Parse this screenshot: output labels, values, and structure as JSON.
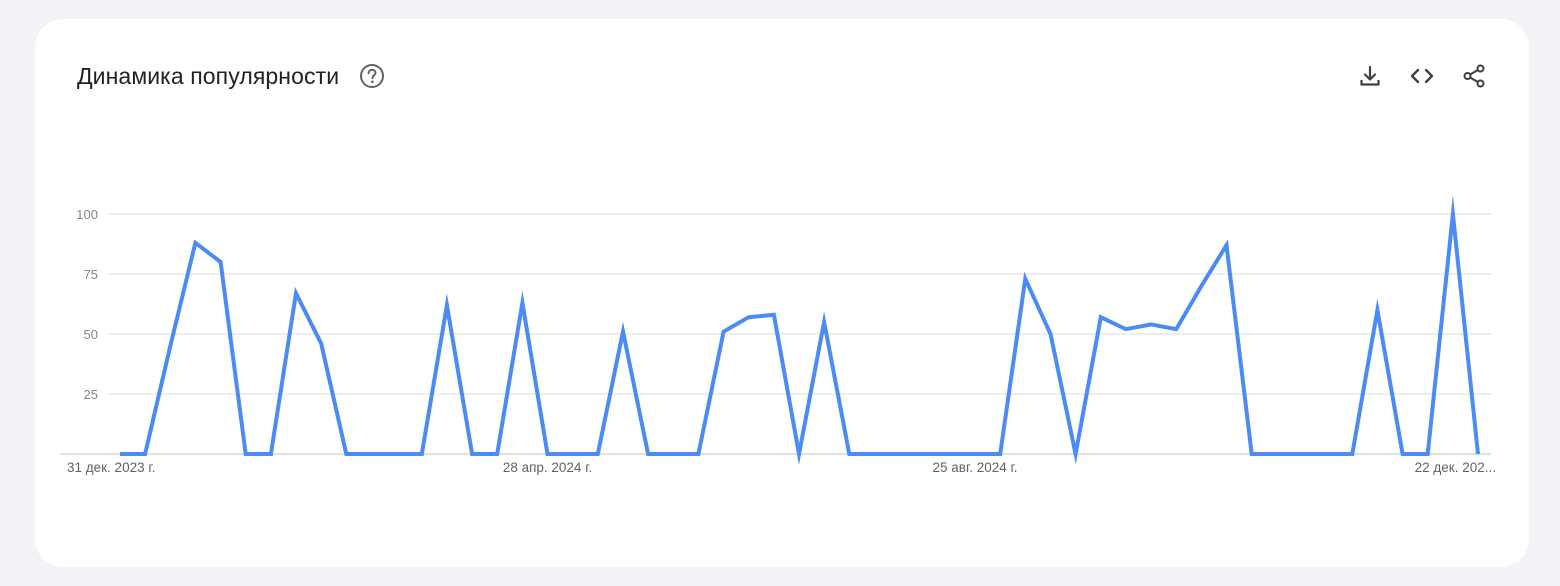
{
  "header": {
    "title": "Динамика популярности"
  },
  "icons": {
    "help": "help-circle-icon",
    "download": "download-icon",
    "embed": "code-icon",
    "share": "share-icon"
  },
  "colors": {
    "line": "#4c8bf5",
    "grid": "#dadce0",
    "text": "#202124",
    "muted": "#80868b"
  },
  "chart_data": {
    "type": "line",
    "y_ticks": [
      "100",
      "75",
      "50",
      "25"
    ],
    "ylim": [
      0,
      100
    ],
    "x_tick_labels": [
      "31 дек. 2023 г.",
      "28 апр. 2024 г.",
      "25 авг. 2024 г.",
      "22 дек. 202..."
    ],
    "x_tick_indices": [
      0,
      17,
      34,
      51
    ],
    "grid": true,
    "series": [
      {
        "values": [
          0,
          0,
          45,
          88,
          80,
          0,
          0,
          67,
          46,
          0,
          0,
          0,
          0,
          62,
          0,
          0,
          63,
          0,
          0,
          0,
          51,
          0,
          0,
          0,
          51,
          57,
          58,
          0,
          55,
          0,
          0,
          0,
          0,
          0,
          0,
          0,
          73,
          50,
          0,
          57,
          52,
          54,
          52,
          70,
          87,
          0,
          0,
          0,
          0,
          0,
          60,
          0,
          0,
          100,
          0
        ]
      }
    ]
  }
}
